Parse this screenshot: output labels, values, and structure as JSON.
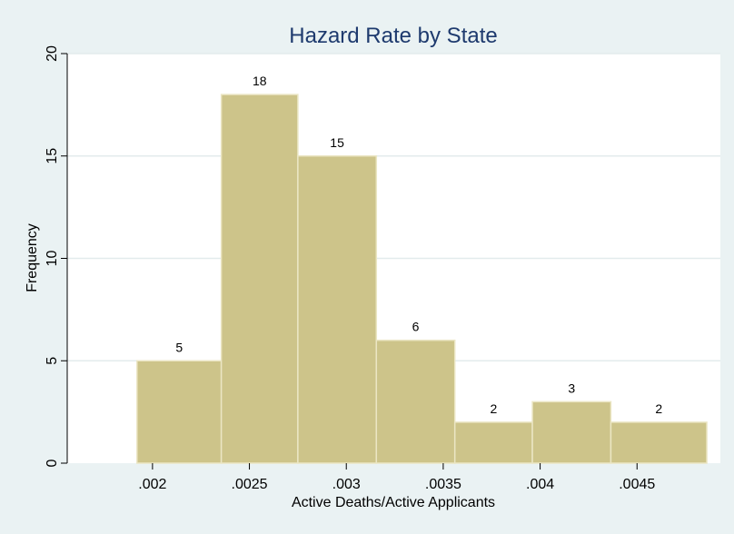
{
  "chart_data": {
    "type": "bar",
    "title": "Hazard Rate by State",
    "xlabel": "Active Deaths/Active Applicants",
    "ylabel": "Frequency",
    "bins": [
      {
        "x0": 0.00192,
        "x1": 0.002355,
        "value": 5
      },
      {
        "x0": 0.002355,
        "x1": 0.00275,
        "value": 18
      },
      {
        "x0": 0.00275,
        "x1": 0.003155,
        "value": 15
      },
      {
        "x0": 0.003155,
        "x1": 0.00356,
        "value": 6
      },
      {
        "x0": 0.00356,
        "x1": 0.00396,
        "value": 2
      },
      {
        "x0": 0.00396,
        "x1": 0.004365,
        "value": 3
      },
      {
        "x0": 0.004365,
        "x1": 0.00486,
        "value": 2
      }
    ],
    "values": [
      5,
      18,
      15,
      6,
      2,
      3,
      2
    ],
    "xticks": [
      {
        "value": 0.002,
        "label": ".002"
      },
      {
        "value": 0.0025,
        "label": ".0025"
      },
      {
        "value": 0.003,
        "label": ".003"
      },
      {
        "value": 0.0035,
        "label": ".0035"
      },
      {
        "value": 0.004,
        "label": ".004"
      },
      {
        "value": 0.0045,
        "label": ".0045"
      }
    ],
    "yticks": [
      0,
      5,
      10,
      15,
      20
    ],
    "xlim": [
      0.00156,
      0.00493
    ],
    "ylim": [
      0,
      20
    ],
    "grid": true,
    "colors": {
      "background": "#eaf2f3",
      "plot_background": "#ffffff",
      "bar_fill": "#cdc48a",
      "bar_edge": "#ebe6c4",
      "grid": "#e3ebec",
      "title": "#1e3a6e"
    }
  }
}
